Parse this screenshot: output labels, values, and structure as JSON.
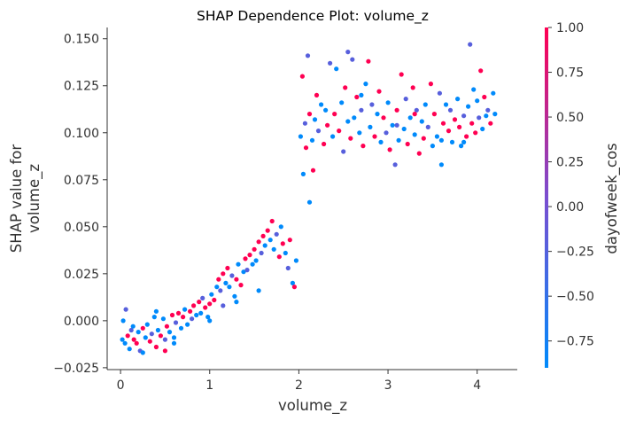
{
  "chart_data": {
    "type": "scatter",
    "title": "SHAP Dependence Plot: volume_z",
    "xlabel": "volume_z",
    "ylabel_lines": [
      "SHAP value for",
      "volume_z"
    ],
    "xlim": [
      -0.15,
      4.45
    ],
    "ylim": [
      -0.026,
      0.156
    ],
    "xticks": [
      0,
      1,
      2,
      3,
      4
    ],
    "xtick_labels": [
      "0",
      "1",
      "2",
      "3",
      "4"
    ],
    "yticks": [
      -0.025,
      0,
      0.025,
      0.05,
      0.075,
      0.1,
      0.125,
      0.15
    ],
    "ytick_labels": [
      "−0.025",
      "0.000",
      "0.025",
      "0.050",
      "0.075",
      "0.100",
      "0.125",
      "0.150"
    ],
    "colorbar": {
      "label": "dayofweek_cos",
      "range": [
        -0.9,
        1.0
      ],
      "ticks": [
        1.0,
        0.75,
        0.5,
        0.25,
        0.0,
        -0.25,
        -0.5,
        -0.75
      ],
      "tick_labels": [
        "1.00",
        "0.75",
        "0.50",
        "0.25",
        "0.00",
        "−0.25",
        "−0.50",
        "−0.75"
      ],
      "cmap": [
        "#008afb",
        "#7a4ed0",
        "#ff0052"
      ]
    },
    "grid": false,
    "point_color_values": [
      1.0,
      -0.9,
      -0.22
    ],
    "points": [
      [
        0.02,
        -0.01,
        -0.9
      ],
      [
        0.05,
        -0.012,
        -0.9
      ],
      [
        0.08,
        -0.008,
        1.0
      ],
      [
        0.1,
        -0.015,
        -0.9
      ],
      [
        0.12,
        -0.005,
        -0.22
      ],
      [
        0.15,
        -0.01,
        1.0
      ],
      [
        0.03,
        0.0,
        -0.9
      ],
      [
        0.06,
        0.006,
        -0.22
      ],
      [
        0.14,
        -0.003,
        -0.9
      ],
      [
        0.18,
        -0.012,
        1.0
      ],
      [
        0.2,
        -0.006,
        -0.9
      ],
      [
        0.22,
        -0.016,
        -0.22
      ],
      [
        0.25,
        -0.004,
        1.0
      ],
      [
        0.28,
        -0.009,
        -0.9
      ],
      [
        0.3,
        -0.002,
        -0.9
      ],
      [
        0.33,
        -0.011,
        1.0
      ],
      [
        0.35,
        -0.007,
        -0.22
      ],
      [
        0.38,
        0.002,
        -0.9
      ],
      [
        0.4,
        -0.014,
        1.0
      ],
      [
        0.42,
        -0.005,
        -0.9
      ],
      [
        0.45,
        -0.008,
        1.0
      ],
      [
        0.48,
        0.001,
        -0.9
      ],
      [
        0.5,
        -0.01,
        -0.22
      ],
      [
        0.52,
        -0.003,
        1.0
      ],
      [
        0.55,
        -0.006,
        -0.9
      ],
      [
        0.58,
        0.003,
        1.0
      ],
      [
        0.6,
        -0.009,
        -0.9
      ],
      [
        0.62,
        -0.001,
        -0.22
      ],
      [
        0.65,
        0.004,
        1.0
      ],
      [
        0.68,
        -0.004,
        -0.9
      ],
      [
        0.7,
        0.002,
        1.0
      ],
      [
        0.72,
        0.006,
        -0.9
      ],
      [
        0.75,
        -0.002,
        -0.9
      ],
      [
        0.78,
        0.005,
        1.0
      ],
      [
        0.8,
        0.001,
        -0.22
      ],
      [
        0.82,
        0.008,
        1.0
      ],
      [
        0.85,
        0.003,
        -0.9
      ],
      [
        0.88,
        0.01,
        1.0
      ],
      [
        0.9,
        0.004,
        -0.9
      ],
      [
        0.92,
        0.012,
        -0.22
      ],
      [
        0.95,
        0.007,
        1.0
      ],
      [
        0.98,
        0.002,
        -0.9
      ],
      [
        1.0,
        0.009,
        1.0
      ],
      [
        1.02,
        0.014,
        -0.9
      ],
      [
        1.05,
        0.011,
        1.0
      ],
      [
        1.08,
        0.018,
        -0.9
      ],
      [
        1.1,
        0.022,
        1.0
      ],
      [
        1.12,
        0.016,
        -0.22
      ],
      [
        1.15,
        0.025,
        1.0
      ],
      [
        1.18,
        0.02,
        -0.9
      ],
      [
        1.2,
        0.028,
        1.0
      ],
      [
        1.22,
        0.018,
        -0.9
      ],
      [
        1.25,
        0.024,
        -0.22
      ],
      [
        1.28,
        0.013,
        -0.9
      ],
      [
        1.3,
        0.022,
        1.0
      ],
      [
        1.32,
        0.03,
        -0.9
      ],
      [
        1.35,
        0.019,
        1.0
      ],
      [
        1.38,
        0.026,
        -0.9
      ],
      [
        1.4,
        0.033,
        1.0
      ],
      [
        1.42,
        0.027,
        -0.22
      ],
      [
        1.45,
        0.035,
        1.0
      ],
      [
        1.48,
        0.03,
        -0.9
      ],
      [
        1.5,
        0.038,
        1.0
      ],
      [
        1.52,
        0.032,
        -0.9
      ],
      [
        1.55,
        0.042,
        1.0
      ],
      [
        1.58,
        0.036,
        -0.22
      ],
      [
        1.6,
        0.045,
        1.0
      ],
      [
        1.62,
        0.04,
        -0.9
      ],
      [
        1.65,
        0.048,
        1.0
      ],
      [
        1.68,
        0.043,
        -0.9
      ],
      [
        1.7,
        0.053,
        1.0
      ],
      [
        1.72,
        0.038,
        -0.9
      ],
      [
        1.75,
        0.046,
        -0.22
      ],
      [
        1.78,
        0.034,
        1.0
      ],
      [
        1.8,
        0.05,
        -0.9
      ],
      [
        1.82,
        0.041,
        1.0
      ],
      [
        1.85,
        0.036,
        -0.9
      ],
      [
        1.88,
        0.028,
        -0.22
      ],
      [
        1.9,
        0.043,
        1.0
      ],
      [
        1.93,
        0.02,
        -0.9
      ],
      [
        1.95,
        0.018,
        1.0
      ],
      [
        1.97,
        0.032,
        -0.9
      ],
      [
        0.5,
        -0.016,
        1.0
      ],
      [
        0.6,
        -0.012,
        -0.9
      ],
      [
        1.0,
        0.0,
        -0.9
      ],
      [
        1.15,
        0.008,
        -0.22
      ],
      [
        1.3,
        0.01,
        -0.9
      ],
      [
        1.55,
        0.016,
        -0.9
      ],
      [
        0.25,
        -0.017,
        -0.9
      ],
      [
        0.4,
        0.005,
        -0.9
      ],
      [
        2.02,
        0.098,
        -0.9
      ],
      [
        2.04,
        0.13,
        1.0
      ],
      [
        2.05,
        0.078,
        -0.9
      ],
      [
        2.07,
        0.105,
        -0.22
      ],
      [
        2.08,
        0.092,
        1.0
      ],
      [
        2.1,
        0.141,
        -0.22
      ],
      [
        2.12,
        0.063,
        -0.9
      ],
      [
        2.12,
        0.11,
        1.0
      ],
      [
        2.15,
        0.096,
        -0.9
      ],
      [
        2.16,
        0.08,
        1.0
      ],
      [
        2.18,
        0.107,
        -0.9
      ],
      [
        2.2,
        0.12,
        1.0
      ],
      [
        2.22,
        0.101,
        -0.22
      ],
      [
        2.25,
        0.115,
        -0.9
      ],
      [
        2.28,
        0.094,
        1.0
      ],
      [
        2.3,
        0.112,
        -0.9
      ],
      [
        2.32,
        0.104,
        1.0
      ],
      [
        2.35,
        0.137,
        -0.22
      ],
      [
        2.38,
        0.098,
        -0.9
      ],
      [
        2.4,
        0.11,
        1.0
      ],
      [
        2.42,
        0.134,
        -0.9
      ],
      [
        2.45,
        0.101,
        1.0
      ],
      [
        2.48,
        0.116,
        -0.9
      ],
      [
        2.5,
        0.09,
        -0.22
      ],
      [
        2.52,
        0.124,
        1.0
      ],
      [
        2.55,
        0.106,
        -0.9
      ],
      [
        2.58,
        0.097,
        1.0
      ],
      [
        2.6,
        0.139,
        -0.22
      ],
      [
        2.62,
        0.108,
        -0.9
      ],
      [
        2.65,
        0.119,
        1.0
      ],
      [
        2.68,
        0.1,
        -0.9
      ],
      [
        2.7,
        0.112,
        -0.22
      ],
      [
        2.72,
        0.093,
        1.0
      ],
      [
        2.75,
        0.126,
        -0.9
      ],
      [
        2.78,
        0.138,
        1.0
      ],
      [
        2.8,
        0.103,
        -0.9
      ],
      [
        2.82,
        0.115,
        -0.22
      ],
      [
        2.85,
        0.098,
        1.0
      ],
      [
        2.88,
        0.11,
        -0.9
      ],
      [
        2.9,
        0.122,
        1.0
      ],
      [
        2.92,
        0.095,
        -0.9
      ],
      [
        2.95,
        0.108,
        1.0
      ],
      [
        2.98,
        0.1,
        -0.22
      ],
      [
        3.0,
        0.116,
        -0.9
      ],
      [
        3.02,
        0.091,
        1.0
      ],
      [
        3.05,
        0.104,
        -0.9
      ],
      [
        3.08,
        0.083,
        -0.22
      ],
      [
        3.1,
        0.112,
        1.0
      ],
      [
        3.12,
        0.096,
        -0.9
      ],
      [
        3.15,
        0.131,
        1.0
      ],
      [
        3.18,
        0.102,
        -0.9
      ],
      [
        3.2,
        0.118,
        -0.22
      ],
      [
        3.22,
        0.094,
        1.0
      ],
      [
        3.25,
        0.108,
        -0.9
      ],
      [
        3.28,
        0.124,
        1.0
      ],
      [
        3.3,
        0.099,
        -0.9
      ],
      [
        3.32,
        0.112,
        -0.22
      ],
      [
        3.35,
        0.089,
        1.0
      ],
      [
        3.38,
        0.106,
        -0.9
      ],
      [
        3.4,
        0.097,
        1.0
      ],
      [
        3.42,
        0.115,
        -0.9
      ],
      [
        3.45,
        0.103,
        -0.22
      ],
      [
        3.48,
        0.126,
        1.0
      ],
      [
        3.5,
        0.093,
        -0.9
      ],
      [
        3.52,
        0.11,
        1.0
      ],
      [
        3.55,
        0.098,
        -0.9
      ],
      [
        3.58,
        0.121,
        -0.22
      ],
      [
        3.6,
        0.083,
        -0.9
      ],
      [
        3.62,
        0.105,
        1.0
      ],
      [
        3.65,
        0.115,
        -0.9
      ],
      [
        3.68,
        0.101,
        1.0
      ],
      [
        3.7,
        0.112,
        -0.22
      ],
      [
        3.72,
        0.095,
        -0.9
      ],
      [
        3.75,
        0.107,
        1.0
      ],
      [
        3.78,
        0.118,
        -0.9
      ],
      [
        3.8,
        0.103,
        1.0
      ],
      [
        3.82,
        0.093,
        -0.9
      ],
      [
        3.85,
        0.109,
        -0.22
      ],
      [
        3.88,
        0.098,
        1.0
      ],
      [
        3.9,
        0.114,
        -0.9
      ],
      [
        3.92,
        0.147,
        -0.22
      ],
      [
        3.94,
        0.105,
        1.0
      ],
      [
        3.96,
        0.123,
        -0.9
      ],
      [
        3.98,
        0.1,
        1.0
      ],
      [
        4.0,
        0.117,
        -0.9
      ],
      [
        4.02,
        0.108,
        -0.22
      ],
      [
        4.04,
        0.133,
        1.0
      ],
      [
        4.06,
        0.102,
        -0.9
      ],
      [
        4.08,
        0.119,
        1.0
      ],
      [
        4.1,
        0.109,
        -0.9
      ],
      [
        4.12,
        0.112,
        -0.22
      ],
      [
        4.15,
        0.105,
        1.0
      ],
      [
        4.18,
        0.121,
        -0.9
      ],
      [
        4.2,
        0.11,
        -0.9
      ],
      [
        2.55,
        0.143,
        -0.22
      ],
      [
        3.6,
        0.096,
        -0.9
      ],
      [
        3.3,
        0.11,
        1.0
      ],
      [
        2.7,
        0.12,
        -0.9
      ],
      [
        3.85,
        0.095,
        -0.9
      ],
      [
        3.1,
        0.104,
        -0.22
      ]
    ]
  }
}
